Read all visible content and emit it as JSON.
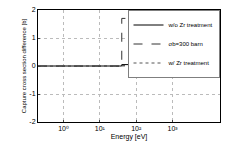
{
  "chart_data": {
    "type": "line",
    "x_label": "Energy [eV]",
    "y_label": "Capture cross section difference [b]",
    "log": "x",
    "grid": true,
    "legend": "top right",
    "xlim": [
      0.2,
      20000
    ],
    "xticks": [
      {
        "value": 1,
        "label": "10⁰"
      },
      {
        "value": 10,
        "label": "10¹"
      },
      {
        "value": 100,
        "label": "10²"
      },
      {
        "value": 1000,
        "label": "10³"
      }
    ],
    "ylim": [
      -2,
      2
    ],
    "yticks": [
      -2,
      -1,
      0,
      1,
      2
    ],
    "series": [
      {
        "name": "w/o Zr treatment",
        "color": "#000000",
        "line_style": "solid",
        "x": [
          0.2,
          40,
          40,
          160,
          160,
          500,
          500,
          1000,
          1000,
          1500,
          1500,
          3000,
          3000,
          20000
        ],
        "values": [
          0,
          0,
          0.05,
          0.05,
          0.1,
          0.1,
          -0.15,
          -0.15,
          0.05,
          0.05,
          -0.05,
          -0.05,
          0,
          0
        ]
      },
      {
        "name": "σb=300 barn",
        "color": "#333333",
        "line_style": "dash",
        "x": [
          0.2,
          40,
          40,
          160,
          160,
          500,
          500,
          20000
        ],
        "values": [
          0,
          0,
          1.7,
          1.7,
          0.2,
          0.2,
          0,
          0
        ]
      },
      {
        "name": "w/ Zr treatment",
        "color": "#555555",
        "line_style": "dot",
        "x": [
          0.2,
          40,
          40,
          160,
          160,
          500,
          500,
          1000,
          1000,
          3000,
          3000,
          20000
        ],
        "values": [
          0,
          0,
          0.02,
          0.02,
          0.03,
          0.03,
          -0.05,
          -0.05,
          0.02,
          0.02,
          0,
          0
        ]
      }
    ]
  }
}
